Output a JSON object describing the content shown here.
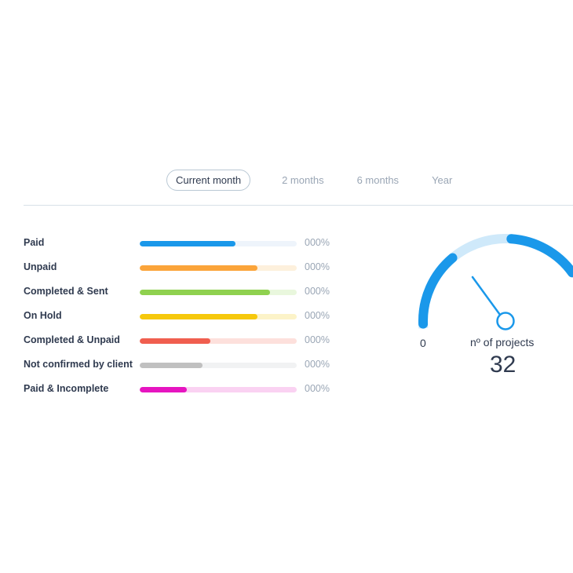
{
  "tabs": [
    {
      "label": "Current month",
      "active": true
    },
    {
      "label": "2 months",
      "active": false
    },
    {
      "label": "6 months",
      "active": false
    },
    {
      "label": "Year",
      "active": false
    }
  ],
  "statuses": [
    {
      "label": "Paid",
      "percent_text": "000%",
      "fraction": 0.61,
      "color": "#1a98ea",
      "track_color": "#eef4fb"
    },
    {
      "label": "Unpaid",
      "percent_text": "000%",
      "fraction": 0.75,
      "color": "#fba43a",
      "track_color": "#fdf0dc"
    },
    {
      "label": "Completed & Sent",
      "percent_text": "000%",
      "fraction": 0.83,
      "color": "#8fd14f",
      "track_color": "#e9f7dd"
    },
    {
      "label": "On Hold",
      "percent_text": "000%",
      "fraction": 0.75,
      "color": "#f6c80c",
      "track_color": "#fcf3c8"
    },
    {
      "label": "Completed & Unpaid",
      "percent_text": "000%",
      "fraction": 0.45,
      "color": "#f05e4f",
      "track_color": "#fde0dc"
    },
    {
      "label": "Not confirmed by client",
      "percent_text": "000%",
      "fraction": 0.4,
      "color": "#c0c0c0",
      "track_color": "#f1f2f3"
    },
    {
      "label": "Paid & Incomplete",
      "percent_text": "000%",
      "fraction": 0.3,
      "color": "#e615c0",
      "track_color": "#fad2f2"
    }
  ],
  "gauge": {
    "min_label": "0",
    "label": "nº of projects",
    "value": "32",
    "fill_color": "#1a98ea",
    "track_color": "#cfe9fa"
  }
}
